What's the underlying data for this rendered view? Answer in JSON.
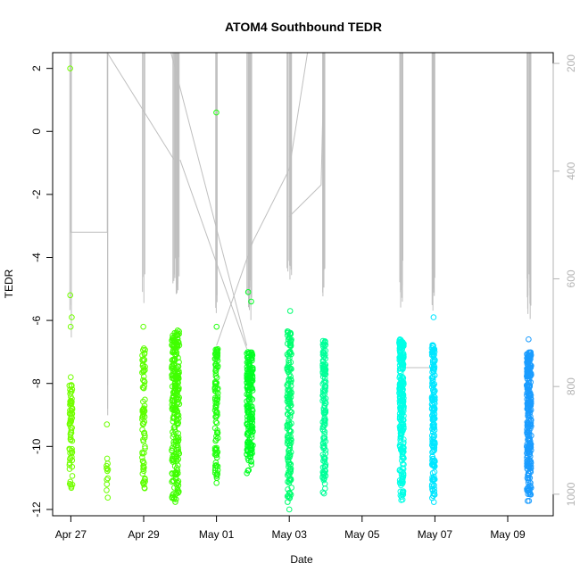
{
  "chart_data": {
    "type": "scatter",
    "title": "ATOM4 Southbound TEDR",
    "xlabel": "Date",
    "ylabel": "TEDR",
    "x_unit": "date",
    "x_range": [
      "2023-04-26T12:00",
      "2023-05-10T06:00"
    ],
    "x_ticks": [
      {
        "value": "2023-04-27",
        "label": "Apr 27"
      },
      {
        "value": "2023-04-29",
        "label": "Apr 29"
      },
      {
        "value": "2023-05-01",
        "label": "May 01"
      },
      {
        "value": "2023-05-03",
        "label": "May 03"
      },
      {
        "value": "2023-05-05",
        "label": "May 05"
      },
      {
        "value": "2023-05-07",
        "label": "May 07"
      },
      {
        "value": "2023-05-09",
        "label": "May 09"
      }
    ],
    "ylim": [
      -12.2,
      2.5
    ],
    "y_ticks": [
      2,
      0,
      -2,
      -4,
      -6,
      -8,
      -10,
      -12
    ],
    "secondary_axis": {
      "side": "right",
      "range": [
        180,
        1040
      ],
      "reversed": true,
      "ticks": [
        200,
        400,
        600,
        800,
        1000
      ],
      "color": "#b3b3b3"
    },
    "grid": false,
    "point_color_scale": [
      "#66ff00",
      "#00ff33",
      "#00ffcc",
      "#00ccff",
      "#0080ff"
    ],
    "clusters": [
      {
        "date": "2023-04-27T00:00",
        "width_hours": 2,
        "y_min": -11.5,
        "y_max": -8.0,
        "n": 70,
        "color": "#73ff00",
        "outliers": [
          2.0,
          -5.2,
          -5.9,
          -6.2,
          -7.8,
          -8.2
        ]
      },
      {
        "date": "2023-04-28T00:00",
        "width_hours": 1,
        "y_min": -11.7,
        "y_max": -10.3,
        "n": 12,
        "color": "#6cff00",
        "outliers": [
          -9.3
        ]
      },
      {
        "date": "2023-04-29T00:00",
        "width_hours": 2,
        "y_min": -11.4,
        "y_max": -6.8,
        "n": 80,
        "color": "#5cff00",
        "outliers": [
          -6.2
        ]
      },
      {
        "date": "2023-04-29T21:00",
        "width_hours": 5,
        "y_min": -11.8,
        "y_max": -6.3,
        "n": 260,
        "color": "#40ff00",
        "outliers": []
      },
      {
        "date": "2023-05-01T00:00",
        "width_hours": 2,
        "y_min": -11.2,
        "y_max": -6.8,
        "n": 110,
        "color": "#22ff10",
        "outliers": [
          0.6,
          -6.2
        ]
      },
      {
        "date": "2023-05-01T22:00",
        "width_hours": 4,
        "y_min": -10.9,
        "y_max": -7.0,
        "n": 200,
        "color": "#00ff22",
        "outliers": [
          -5.1,
          -5.4
        ]
      },
      {
        "date": "2023-05-03T00:00",
        "width_hours": 3,
        "y_min": -11.8,
        "y_max": -6.3,
        "n": 170,
        "color": "#00ff70",
        "outliers": [
          -5.7,
          -12.0
        ]
      },
      {
        "date": "2023-05-03T23:00",
        "width_hours": 2,
        "y_min": -11.5,
        "y_max": -6.6,
        "n": 140,
        "color": "#00ff99",
        "outliers": []
      },
      {
        "date": "2023-05-06T02:00",
        "width_hours": 3,
        "y_min": -11.8,
        "y_max": -6.6,
        "n": 260,
        "color": "#00ffe6",
        "outliers": []
      },
      {
        "date": "2023-05-06T23:00",
        "width_hours": 2,
        "y_min": -11.8,
        "y_max": -6.7,
        "n": 170,
        "color": "#00e6ff",
        "outliers": [
          -5.9
        ]
      },
      {
        "date": "2023-05-09T14:00",
        "width_hours": 3,
        "y_min": -11.8,
        "y_max": -7.0,
        "n": 280,
        "color": "#1a9cff",
        "outliers": [
          -6.6
        ]
      }
    ]
  }
}
